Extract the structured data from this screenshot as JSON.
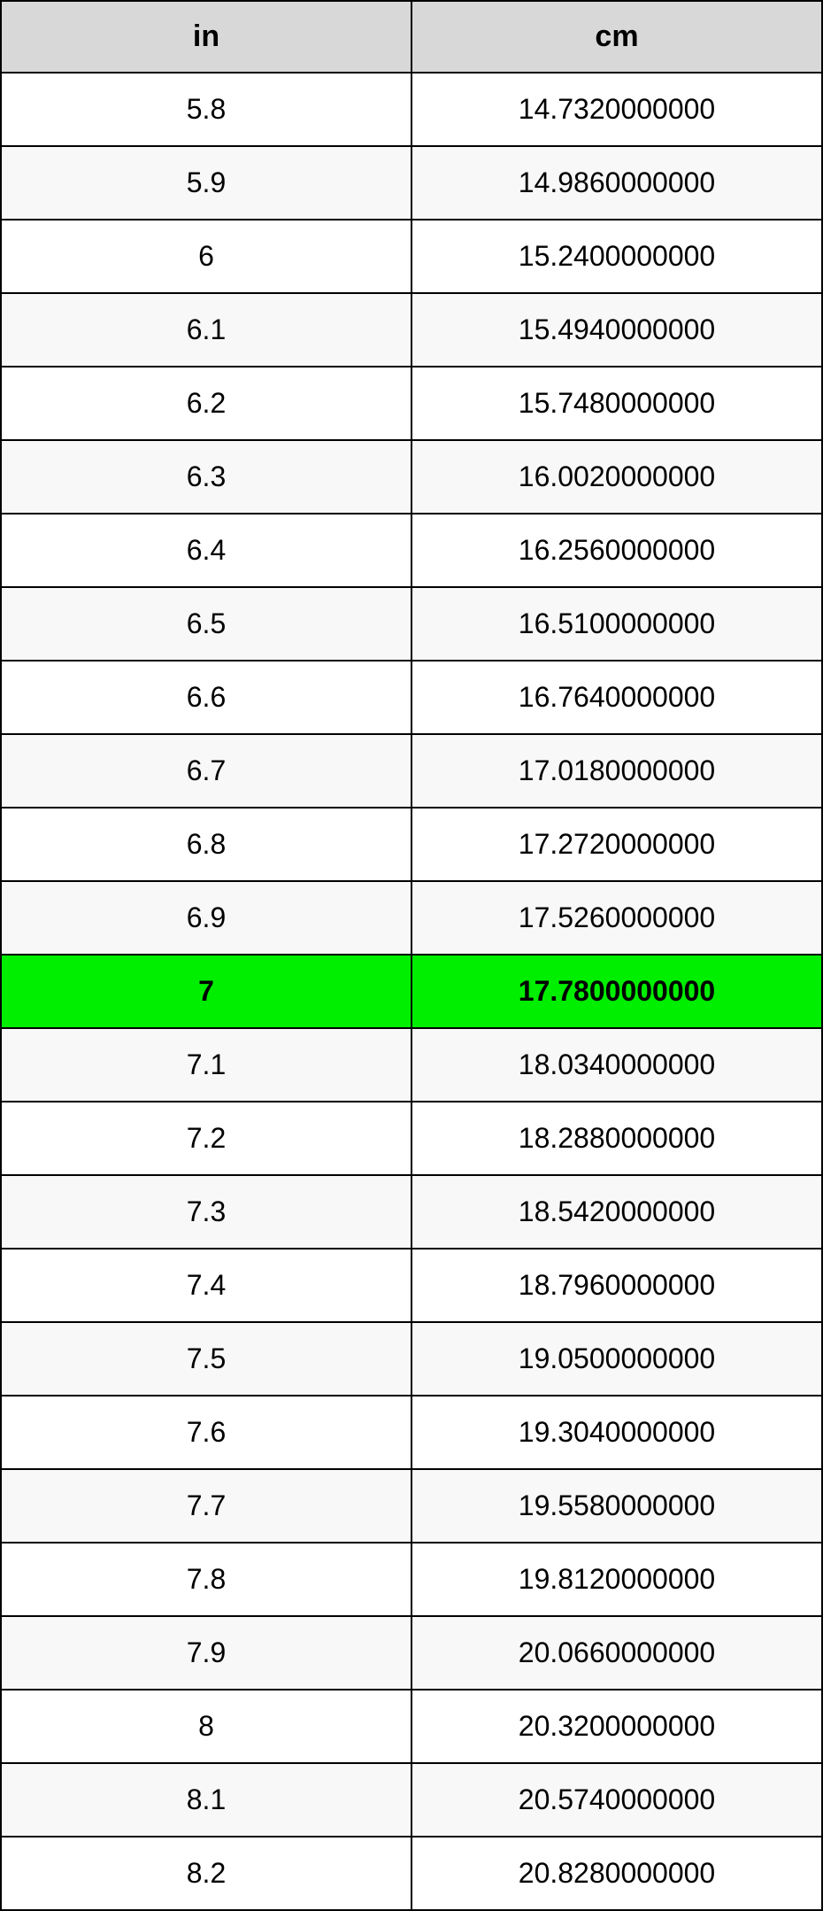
{
  "table": {
    "type": "table",
    "header_bg": "#d8d8d8",
    "row_bg_even": "#ffffff",
    "row_bg_odd": "#f8f8f8",
    "highlight_bg": "#00ee00",
    "border_color": "#000000",
    "text_color": "#000000",
    "header_fontsize": 34,
    "cell_fontsize": 32,
    "columns": [
      {
        "label": "in",
        "width": "50%"
      },
      {
        "label": "cm",
        "width": "50%"
      }
    ],
    "rows": [
      {
        "in": "5.8",
        "cm": "14.7320000000",
        "highlight": false
      },
      {
        "in": "5.9",
        "cm": "14.9860000000",
        "highlight": false
      },
      {
        "in": "6",
        "cm": "15.2400000000",
        "highlight": false
      },
      {
        "in": "6.1",
        "cm": "15.4940000000",
        "highlight": false
      },
      {
        "in": "6.2",
        "cm": "15.7480000000",
        "highlight": false
      },
      {
        "in": "6.3",
        "cm": "16.0020000000",
        "highlight": false
      },
      {
        "in": "6.4",
        "cm": "16.2560000000",
        "highlight": false
      },
      {
        "in": "6.5",
        "cm": "16.5100000000",
        "highlight": false
      },
      {
        "in": "6.6",
        "cm": "16.7640000000",
        "highlight": false
      },
      {
        "in": "6.7",
        "cm": "17.0180000000",
        "highlight": false
      },
      {
        "in": "6.8",
        "cm": "17.2720000000",
        "highlight": false
      },
      {
        "in": "6.9",
        "cm": "17.5260000000",
        "highlight": false
      },
      {
        "in": "7",
        "cm": "17.7800000000",
        "highlight": true
      },
      {
        "in": "7.1",
        "cm": "18.0340000000",
        "highlight": false
      },
      {
        "in": "7.2",
        "cm": "18.2880000000",
        "highlight": false
      },
      {
        "in": "7.3",
        "cm": "18.5420000000",
        "highlight": false
      },
      {
        "in": "7.4",
        "cm": "18.7960000000",
        "highlight": false
      },
      {
        "in": "7.5",
        "cm": "19.0500000000",
        "highlight": false
      },
      {
        "in": "7.6",
        "cm": "19.3040000000",
        "highlight": false
      },
      {
        "in": "7.7",
        "cm": "19.5580000000",
        "highlight": false
      },
      {
        "in": "7.8",
        "cm": "19.8120000000",
        "highlight": false
      },
      {
        "in": "7.9",
        "cm": "20.0660000000",
        "highlight": false
      },
      {
        "in": "8",
        "cm": "20.3200000000",
        "highlight": false
      },
      {
        "in": "8.1",
        "cm": "20.5740000000",
        "highlight": false
      },
      {
        "in": "8.2",
        "cm": "20.8280000000",
        "highlight": false
      }
    ]
  }
}
